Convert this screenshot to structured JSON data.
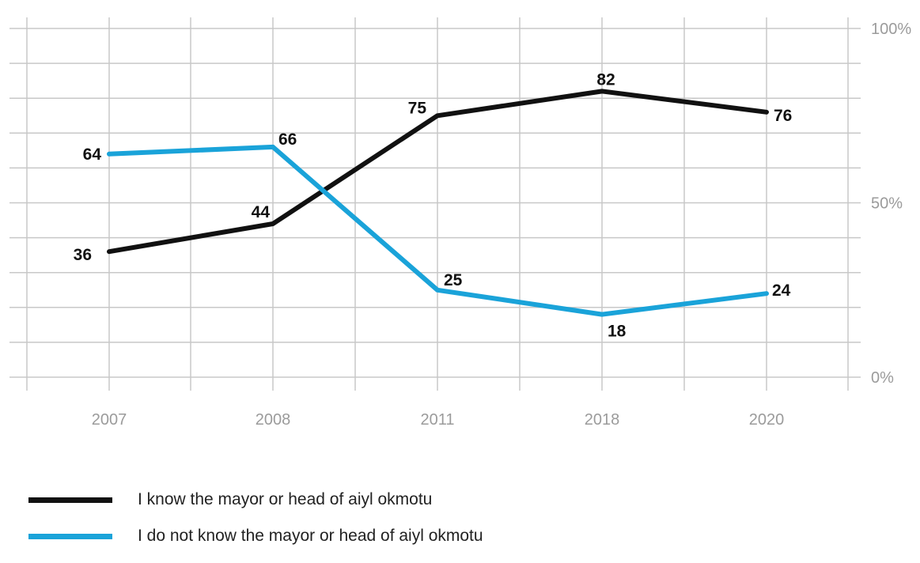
{
  "chart_data": {
    "type": "line",
    "categories": [
      "2007",
      "2008",
      "2011",
      "2018",
      "2020"
    ],
    "y_ticks": [
      "0%",
      "50%",
      "100%"
    ],
    "ylim": [
      0,
      100
    ],
    "grid": true,
    "legend_position": "bottom-left",
    "series": [
      {
        "name": "I know the mayor or head of aiyl okmotu",
        "color": "#111111",
        "values": [
          36,
          44,
          75,
          82,
          76
        ]
      },
      {
        "name": "I do not know the mayor or head of aiyl okmotu",
        "color": "#1aa3d9",
        "values": [
          64,
          66,
          25,
          18,
          24
        ]
      }
    ]
  }
}
